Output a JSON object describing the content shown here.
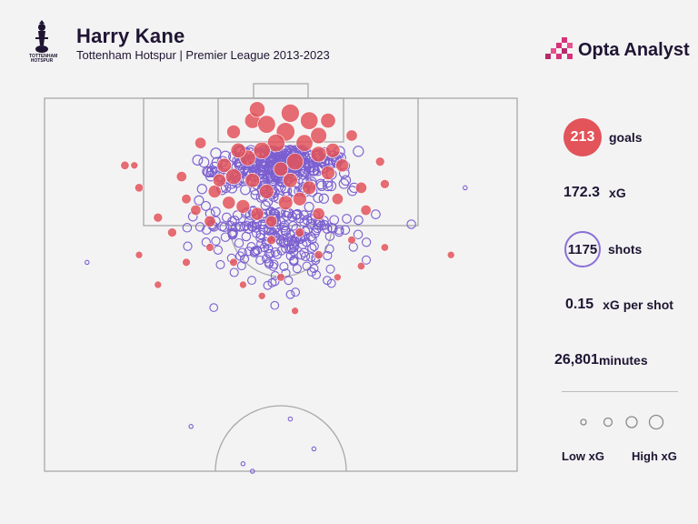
{
  "header": {
    "title": "Harry Kane",
    "subtitle": "Tottenham Hotspur | Premier League 2013-2023",
    "crest_text": "TOTTENHAM HOTSPUR"
  },
  "brand": {
    "name": "Opta Analyst",
    "accent_color": "#d6337a"
  },
  "stats": {
    "goals_value": "213",
    "goals_label": "goals",
    "xg_value": "172.3",
    "xg_label": "xG",
    "shots_value": "1175",
    "shots_label": "shots",
    "xg_per_shot_value": "0.15",
    "xg_per_shot_label": "xG per shot",
    "minutes_value": "26,801",
    "minutes_label": "minutes"
  },
  "legend": {
    "low_label": "Low xG",
    "high_label": "High xG"
  },
  "colors": {
    "goal": "#e2535a",
    "shot": "#7b5fd0",
    "pitch_line": "#a9a9a9",
    "background": "#f3f3f3"
  },
  "chart_data": {
    "type": "scatter",
    "description_units": "pitch coordinates: x across pitch 0-100 (left to right), y distance from goal line 0-100",
    "title": "Harry Kane",
    "goal_color_meaning": "goal",
    "shot_color_meaning": "non-goal shot",
    "xlim": [
      0,
      100
    ],
    "ylim": [
      0,
      100
    ],
    "goals": [
      {
        "x": 52,
        "y": 4,
        "xg": 0.75
      },
      {
        "x": 44,
        "y": 6,
        "xg": 0.5
      },
      {
        "x": 47,
        "y": 7,
        "xg": 0.7
      },
      {
        "x": 56,
        "y": 6,
        "xg": 0.7
      },
      {
        "x": 51,
        "y": 9,
        "xg": 0.8
      },
      {
        "x": 49,
        "y": 12,
        "xg": 0.7
      },
      {
        "x": 55,
        "y": 12,
        "xg": 0.6
      },
      {
        "x": 58,
        "y": 15,
        "xg": 0.5
      },
      {
        "x": 46,
        "y": 14,
        "xg": 0.6
      },
      {
        "x": 43,
        "y": 16,
        "xg": 0.5
      },
      {
        "x": 53,
        "y": 17,
        "xg": 0.6
      },
      {
        "x": 50,
        "y": 19,
        "xg": 0.4
      },
      {
        "x": 38,
        "y": 18,
        "xg": 0.4
      },
      {
        "x": 40,
        "y": 21,
        "xg": 0.5
      },
      {
        "x": 44,
        "y": 22,
        "xg": 0.4
      },
      {
        "x": 60,
        "y": 20,
        "xg": 0.35
      },
      {
        "x": 63,
        "y": 18,
        "xg": 0.3
      },
      {
        "x": 36,
        "y": 25,
        "xg": 0.3
      },
      {
        "x": 47,
        "y": 25,
        "xg": 0.4
      },
      {
        "x": 56,
        "y": 24,
        "xg": 0.35
      },
      {
        "x": 33,
        "y": 12,
        "xg": 0.2
      },
      {
        "x": 29,
        "y": 21,
        "xg": 0.15
      },
      {
        "x": 65,
        "y": 10,
        "xg": 0.2
      },
      {
        "x": 67,
        "y": 24,
        "xg": 0.2
      },
      {
        "x": 42,
        "y": 29,
        "xg": 0.35
      },
      {
        "x": 51,
        "y": 28,
        "xg": 0.4
      },
      {
        "x": 54,
        "y": 27,
        "xg": 0.35
      },
      {
        "x": 39,
        "y": 28,
        "xg": 0.3
      },
      {
        "x": 45,
        "y": 31,
        "xg": 0.3
      },
      {
        "x": 58,
        "y": 31,
        "xg": 0.25
      },
      {
        "x": 62,
        "y": 27,
        "xg": 0.2
      },
      {
        "x": 32,
        "y": 30,
        "xg": 0.15
      },
      {
        "x": 35,
        "y": 33,
        "xg": 0.2
      },
      {
        "x": 48,
        "y": 33,
        "xg": 0.2
      },
      {
        "x": 68,
        "y": 30,
        "xg": 0.15
      },
      {
        "x": 24,
        "y": 32,
        "xg": 0.1
      },
      {
        "x": 27,
        "y": 36,
        "xg": 0.1
      },
      {
        "x": 30,
        "y": 27,
        "xg": 0.12
      },
      {
        "x": 17,
        "y": 18,
        "xg": 0.08
      },
      {
        "x": 20,
        "y": 24,
        "xg": 0.08
      },
      {
        "x": 72,
        "y": 23,
        "xg": 0.1
      },
      {
        "x": 71,
        "y": 17,
        "xg": 0.1
      },
      {
        "x": 40,
        "y": 9,
        "xg": 0.35
      },
      {
        "x": 60,
        "y": 6,
        "xg": 0.45
      },
      {
        "x": 58,
        "y": 10,
        "xg": 0.55
      },
      {
        "x": 45,
        "y": 3,
        "xg": 0.5
      },
      {
        "x": 41,
        "y": 14,
        "xg": 0.45
      },
      {
        "x": 61,
        "y": 14,
        "xg": 0.4
      },
      {
        "x": 52,
        "y": 22,
        "xg": 0.4
      },
      {
        "x": 37,
        "y": 22,
        "xg": 0.3
      },
      {
        "x": 48,
        "y": 38,
        "xg": 0.1
      },
      {
        "x": 40,
        "y": 44,
        "xg": 0.06
      },
      {
        "x": 58,
        "y": 42,
        "xg": 0.08
      },
      {
        "x": 50,
        "y": 48,
        "xg": 0.06
      },
      {
        "x": 30,
        "y": 44,
        "xg": 0.06
      },
      {
        "x": 65,
        "y": 38,
        "xg": 0.06
      },
      {
        "x": 72,
        "y": 40,
        "xg": 0.05
      },
      {
        "x": 46,
        "y": 53,
        "xg": 0.04
      },
      {
        "x": 53,
        "y": 57,
        "xg": 0.04
      },
      {
        "x": 20,
        "y": 42,
        "xg": 0.04
      },
      {
        "x": 86,
        "y": 42,
        "xg": 0.04
      },
      {
        "x": 19,
        "y": 18,
        "xg": 0.04
      },
      {
        "x": 67,
        "y": 45,
        "xg": 0.05
      },
      {
        "x": 35,
        "y": 40,
        "xg": 0.06
      },
      {
        "x": 42,
        "y": 50,
        "xg": 0.04
      },
      {
        "x": 62,
        "y": 48,
        "xg": 0.04
      },
      {
        "x": 24,
        "y": 50,
        "xg": 0.04
      },
      {
        "x": 54,
        "y": 36,
        "xg": 0.1
      }
    ],
    "shot_count_drawn": 520
  }
}
